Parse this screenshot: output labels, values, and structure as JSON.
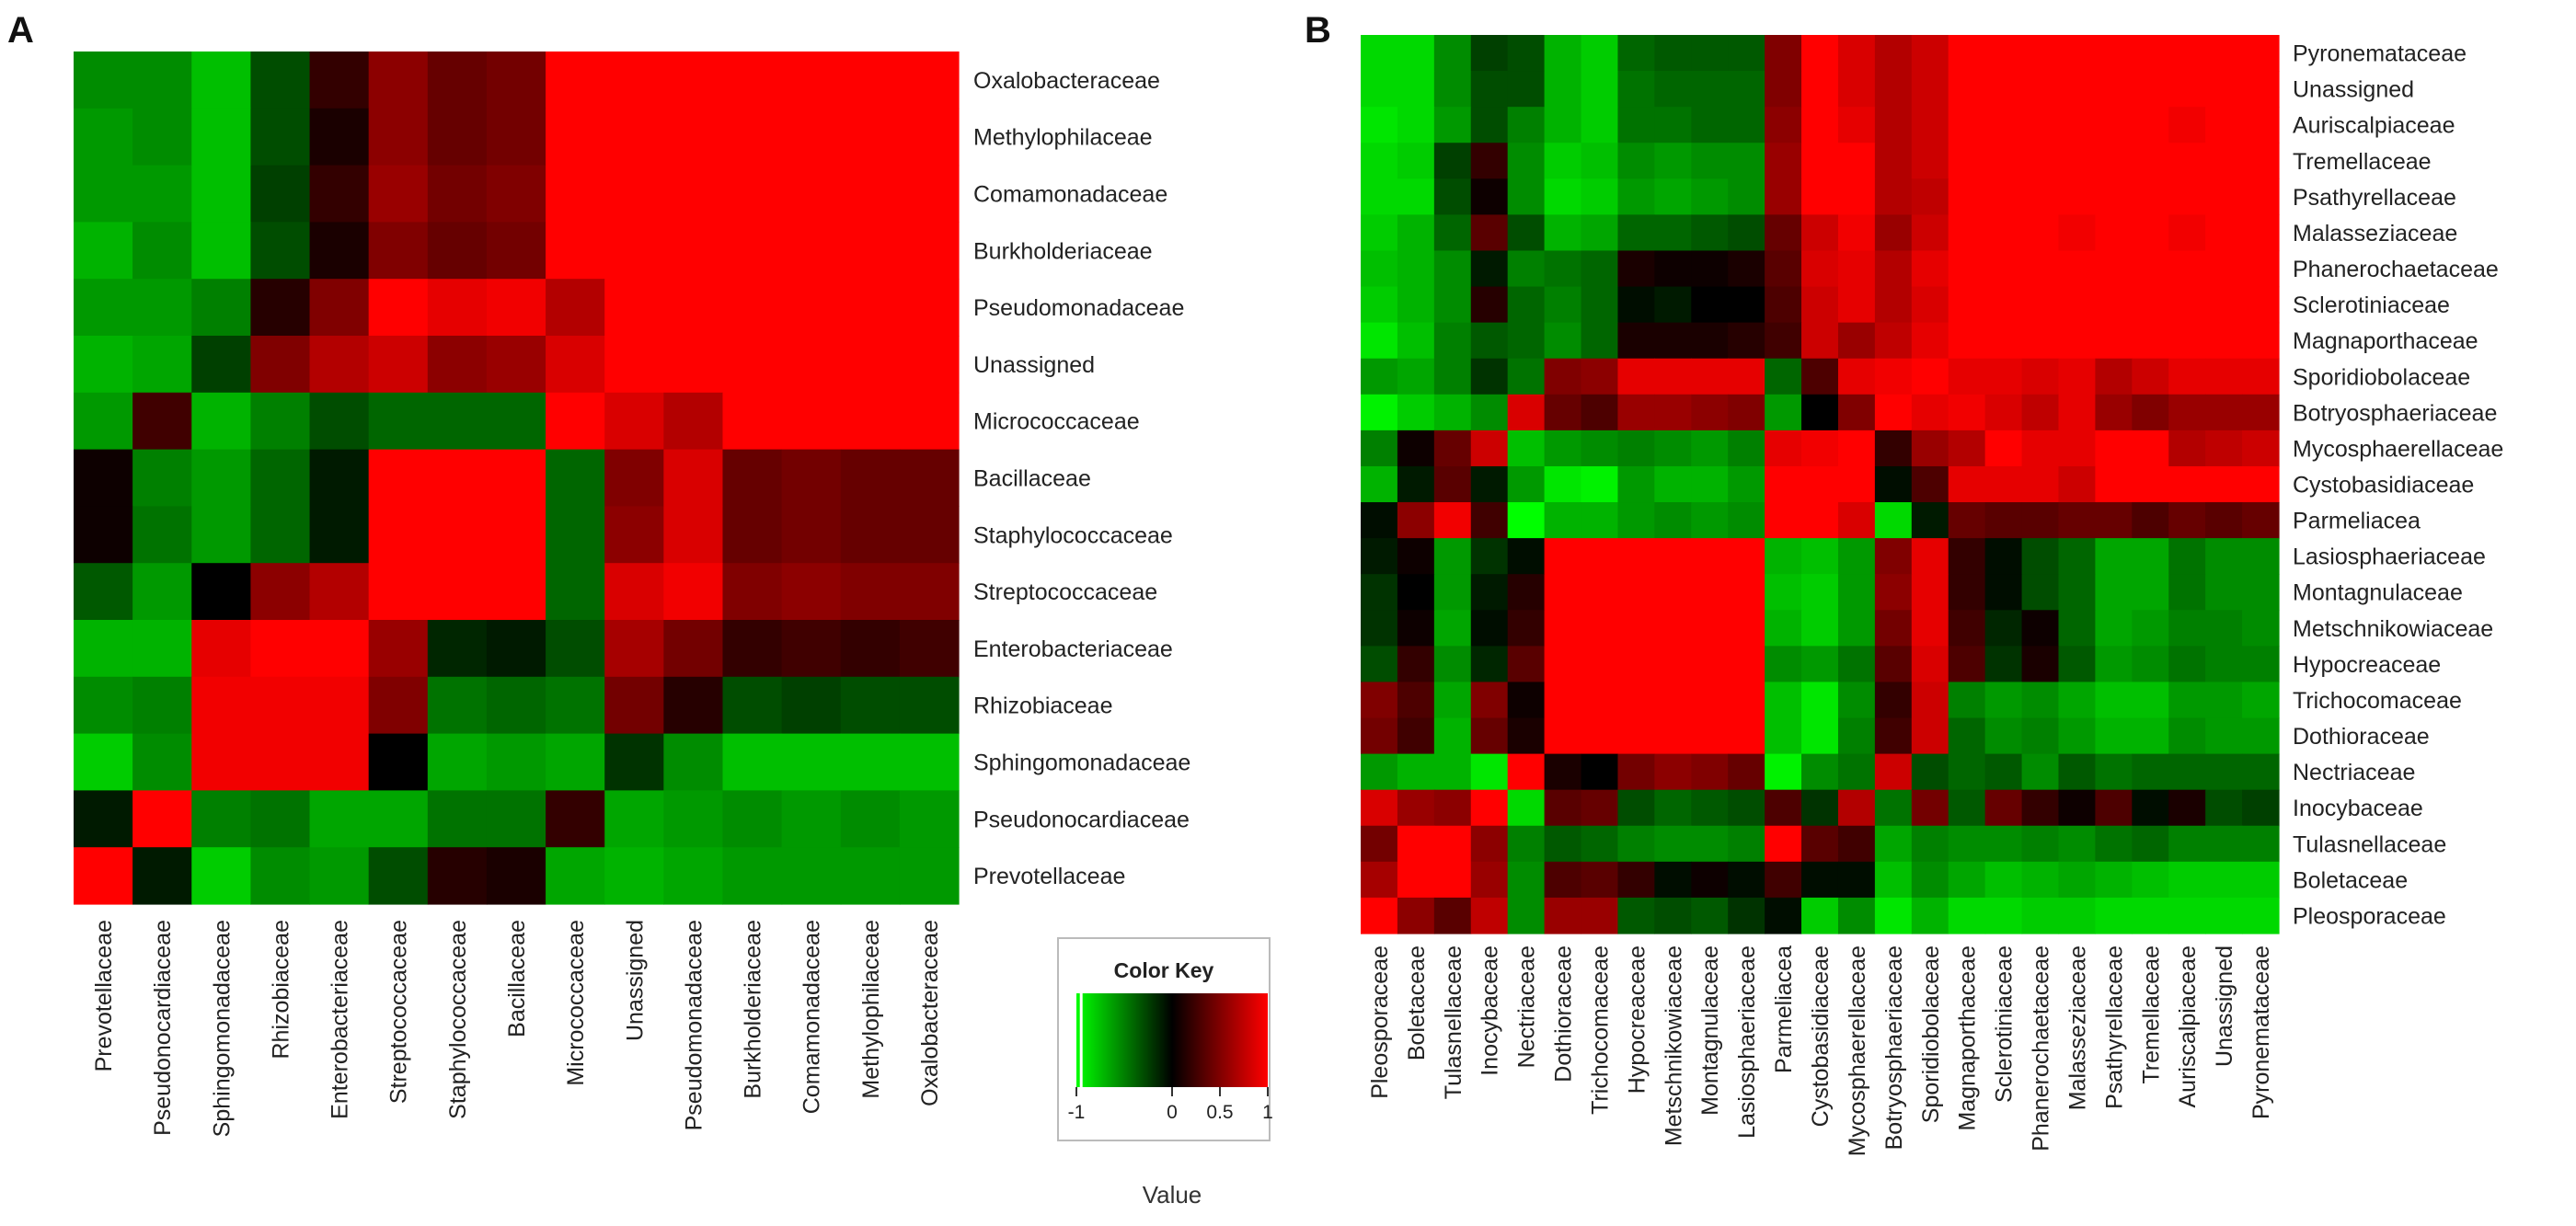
{
  "chart_data": [
    {
      "type": "heatmap",
      "panel_label": "A",
      "rows": [
        "Oxalobacteraceae",
        "Methylophilaceae",
        "Comamonadaceae",
        "Burkholderiaceae",
        "Pseudomonadaceae",
        "Unassigned",
        "Micrococcaceae",
        "Bacillaceae",
        "Staphylococcaceae",
        "Streptococcaceae",
        "Enterobacteriaceae",
        "Rhizobiaceae",
        "Sphingomonadaceae",
        "Pseudonocardiaceae",
        "Prevotellaceae"
      ],
      "columns": [
        "Prevotellaceae",
        "Pseudonocardiaceae",
        "Sphingomonadaceae",
        "Rhizobiaceae",
        "Enterobacteriaceae",
        "Streptococcaceae",
        "Staphylococcaceae",
        "Bacillaceae",
        "Micrococcaceae",
        "Unassigned",
        "Pseudomonadaceae",
        "Burkholderiaceae",
        "Comamonadaceae",
        "Methylophilaceae",
        "Oxalobacteraceae"
      ],
      "values": [
        [
          -0.55,
          -0.55,
          -0.75,
          -0.3,
          0.2,
          0.55,
          0.4,
          0.45,
          1.0,
          1.0,
          1.0,
          1.0,
          1.0,
          1.0,
          1.0
        ],
        [
          -0.6,
          -0.55,
          -0.75,
          -0.3,
          0.1,
          0.55,
          0.4,
          0.45,
          1.0,
          1.0,
          1.0,
          1.0,
          1.0,
          1.0,
          1.0
        ],
        [
          -0.6,
          -0.6,
          -0.75,
          -0.25,
          0.2,
          0.6,
          0.45,
          0.5,
          1.0,
          1.0,
          1.0,
          1.0,
          1.0,
          1.0,
          1.0
        ],
        [
          -0.7,
          -0.55,
          -0.75,
          -0.3,
          0.1,
          0.5,
          0.4,
          0.45,
          1.0,
          1.0,
          1.0,
          1.0,
          1.0,
          1.0,
          1.0
        ],
        [
          -0.6,
          -0.6,
          -0.5,
          0.15,
          0.5,
          1.0,
          0.9,
          0.95,
          0.7,
          1.0,
          1.0,
          1.0,
          1.0,
          1.0,
          1.0
        ],
        [
          -0.7,
          -0.65,
          -0.25,
          0.5,
          0.7,
          0.8,
          0.55,
          0.6,
          0.85,
          1.0,
          1.0,
          1.0,
          1.0,
          1.0,
          1.0
        ],
        [
          -0.6,
          0.25,
          -0.7,
          -0.5,
          -0.3,
          -0.4,
          -0.4,
          -0.4,
          1.0,
          0.85,
          0.7,
          1.0,
          1.0,
          1.0,
          1.0
        ],
        [
          0.05,
          -0.5,
          -0.6,
          -0.4,
          -0.1,
          1.0,
          1.0,
          1.0,
          -0.4,
          0.5,
          0.85,
          0.4,
          0.45,
          0.4,
          0.4
        ],
        [
          0.05,
          -0.45,
          -0.6,
          -0.4,
          -0.1,
          1.0,
          1.0,
          1.0,
          -0.4,
          0.55,
          0.85,
          0.4,
          0.45,
          0.4,
          0.4
        ],
        [
          -0.35,
          -0.6,
          0.0,
          0.55,
          0.7,
          1.0,
          1.0,
          1.0,
          -0.4,
          0.85,
          0.95,
          0.5,
          0.55,
          0.5,
          0.5
        ],
        [
          -0.7,
          -0.7,
          0.9,
          1.0,
          1.0,
          0.6,
          -0.15,
          -0.1,
          -0.3,
          0.65,
          0.45,
          0.2,
          0.25,
          0.2,
          0.25
        ],
        [
          -0.55,
          -0.5,
          0.95,
          0.95,
          0.95,
          0.5,
          -0.45,
          -0.4,
          -0.45,
          0.45,
          0.15,
          -0.3,
          -0.25,
          -0.3,
          -0.3
        ],
        [
          -0.8,
          -0.55,
          0.95,
          0.95,
          0.95,
          0.0,
          -0.65,
          -0.6,
          -0.65,
          -0.2,
          -0.55,
          -0.75,
          -0.75,
          -0.75,
          -0.75
        ],
        [
          -0.1,
          1.0,
          -0.5,
          -0.45,
          -0.65,
          -0.65,
          -0.45,
          -0.45,
          0.2,
          -0.65,
          -0.6,
          -0.55,
          -0.6,
          -0.55,
          -0.6
        ],
        [
          1.0,
          -0.1,
          -0.8,
          -0.55,
          -0.6,
          -0.3,
          0.15,
          0.1,
          -0.65,
          -0.7,
          -0.65,
          -0.6,
          -0.6,
          -0.6,
          -0.6
        ]
      ]
    },
    {
      "type": "heatmap",
      "panel_label": "B",
      "rows": [
        "Pyronemataceae",
        "Unassigned",
        "Auriscalpiaceae",
        "Tremellaceae",
        "Psathyrellaceae",
        "Malasseziaceae",
        "Phanerochaetaceae",
        "Sclerotiniaceae",
        "Magnaporthaceae",
        "Sporidiobolaceae",
        "Botryosphaeriaceae",
        "Mycosphaerellaceae",
        "Cystobasidiaceae",
        "Parmeliacea",
        "Lasiosphaeriaceae",
        "Montagnulaceae",
        "Metschnikowiaceae",
        "Hypocreaceae",
        "Trichocomaceae",
        "Dothioraceae",
        "Nectriaceae",
        "Inocybaceae",
        "Tulasnellaceae",
        "Boletaceae",
        "Pleosporaceae"
      ],
      "columns": [
        "Pleosporaceae",
        "Boletaceae",
        "Tulasnellaceae",
        "Inocybaceae",
        "Nectriaceae",
        "Dothioraceae",
        "Trichocomaceae",
        "Hypocreaceae",
        "Metschnikowiaceae",
        "Montagnulaceae",
        "Lasiosphaeriaceae",
        "Parmeliacea",
        "Cystobasidiaceae",
        "Mycosphaerellaceae",
        "Botryosphaeriaceae",
        "Sporidiobolaceae",
        "Magnaporthaceae",
        "Sclerotiniaceae",
        "Phanerochaetaceae",
        "Malasseziaceae",
        "Psathyrellaceae",
        "Tremellaceae",
        "Auriscalpiaceae",
        "Unassigned",
        "Pyronemataceae"
      ],
      "values": [
        [
          -0.85,
          -0.85,
          -0.55,
          -0.25,
          -0.3,
          -0.7,
          -0.8,
          -0.4,
          -0.35,
          -0.35,
          -0.35,
          0.5,
          1.0,
          0.85,
          0.7,
          0.8,
          1.0,
          1.0,
          1.0,
          1.0,
          1.0,
          1.0,
          1.0,
          1.0,
          1.0
        ],
        [
          -0.85,
          -0.85,
          -0.55,
          -0.3,
          -0.3,
          -0.7,
          -0.8,
          -0.45,
          -0.4,
          -0.4,
          -0.4,
          0.5,
          1.0,
          0.85,
          0.7,
          0.8,
          1.0,
          1.0,
          1.0,
          1.0,
          1.0,
          1.0,
          1.0,
          1.0,
          1.0
        ],
        [
          -0.9,
          -0.85,
          -0.6,
          -0.3,
          -0.5,
          -0.7,
          -0.8,
          -0.45,
          -0.45,
          -0.4,
          -0.4,
          0.55,
          1.0,
          0.9,
          0.7,
          0.8,
          1.0,
          1.0,
          1.0,
          1.0,
          1.0,
          1.0,
          0.95,
          1.0,
          1.0
        ],
        [
          -0.85,
          -0.8,
          -0.25,
          0.2,
          -0.55,
          -0.8,
          -0.75,
          -0.55,
          -0.6,
          -0.55,
          -0.55,
          0.6,
          1.0,
          1.0,
          0.7,
          0.8,
          1.0,
          1.0,
          1.0,
          1.0,
          1.0,
          1.0,
          1.0,
          1.0,
          1.0
        ],
        [
          -0.85,
          -0.85,
          -0.3,
          0.05,
          -0.55,
          -0.85,
          -0.8,
          -0.6,
          -0.65,
          -0.6,
          -0.55,
          0.6,
          1.0,
          1.0,
          0.7,
          0.75,
          1.0,
          1.0,
          1.0,
          1.0,
          1.0,
          1.0,
          1.0,
          1.0,
          1.0
        ],
        [
          -0.8,
          -0.7,
          -0.4,
          0.35,
          -0.3,
          -0.7,
          -0.65,
          -0.4,
          -0.4,
          -0.35,
          -0.3,
          0.4,
          0.8,
          0.95,
          0.6,
          0.8,
          1.0,
          1.0,
          1.0,
          0.95,
          1.0,
          1.0,
          0.95,
          1.0,
          1.0
        ],
        [
          -0.75,
          -0.7,
          -0.55,
          -0.1,
          -0.5,
          -0.45,
          -0.4,
          0.1,
          0.05,
          0.05,
          0.1,
          0.35,
          0.85,
          0.9,
          0.7,
          0.9,
          1.0,
          1.0,
          1.0,
          1.0,
          1.0,
          1.0,
          1.0,
          1.0,
          1.0
        ],
        [
          -0.8,
          -0.7,
          -0.55,
          0.15,
          -0.4,
          -0.5,
          -0.4,
          -0.05,
          -0.1,
          0.0,
          0.0,
          0.3,
          0.8,
          0.9,
          0.7,
          0.85,
          1.0,
          1.0,
          1.0,
          1.0,
          1.0,
          1.0,
          1.0,
          1.0,
          1.0
        ],
        [
          -0.9,
          -0.75,
          -0.5,
          -0.35,
          -0.4,
          -0.55,
          -0.4,
          0.1,
          0.1,
          0.1,
          0.15,
          0.25,
          0.8,
          0.6,
          0.75,
          0.9,
          1.0,
          1.0,
          1.0,
          1.0,
          1.0,
          1.0,
          1.0,
          1.0,
          1.0
        ],
        [
          -0.6,
          -0.65,
          -0.5,
          -0.2,
          -0.45,
          0.5,
          0.55,
          0.9,
          0.9,
          0.9,
          0.9,
          -0.4,
          0.3,
          0.9,
          0.95,
          1.0,
          0.9,
          0.9,
          0.85,
          0.9,
          0.7,
          0.8,
          0.9,
          0.9,
          0.9
        ],
        [
          -0.95,
          -0.8,
          -0.7,
          -0.55,
          0.85,
          0.4,
          0.3,
          0.6,
          0.6,
          0.55,
          0.5,
          -0.6,
          0.0,
          0.5,
          1.0,
          0.9,
          0.95,
          0.85,
          0.75,
          0.9,
          0.6,
          0.5,
          0.6,
          0.6,
          0.6
        ],
        [
          -0.5,
          0.05,
          0.4,
          0.8,
          -0.75,
          -0.6,
          -0.55,
          -0.5,
          -0.55,
          -0.6,
          -0.5,
          0.9,
          0.95,
          1.0,
          0.2,
          0.6,
          0.7,
          1.0,
          0.9,
          0.9,
          1.0,
          1.0,
          0.7,
          0.75,
          0.8
        ],
        [
          -0.7,
          -0.1,
          0.35,
          -0.1,
          -0.6,
          -0.9,
          -0.95,
          -0.6,
          -0.7,
          -0.7,
          -0.6,
          1.0,
          1.0,
          1.0,
          -0.05,
          0.3,
          0.9,
          0.9,
          0.9,
          0.8,
          1.0,
          1.0,
          1.0,
          1.0,
          1.0
        ],
        [
          -0.05,
          0.55,
          0.95,
          0.25,
          -1.0,
          -0.7,
          -0.7,
          -0.6,
          -0.55,
          -0.6,
          -0.55,
          1.0,
          1.0,
          0.85,
          -0.85,
          -0.1,
          0.4,
          0.35,
          0.35,
          0.4,
          0.4,
          0.3,
          0.4,
          0.35,
          0.4
        ],
        [
          -0.1,
          0.05,
          -0.6,
          -0.2,
          -0.05,
          1.0,
          1.0,
          1.0,
          1.0,
          1.0,
          1.0,
          -0.7,
          -0.75,
          -0.6,
          0.5,
          0.9,
          0.2,
          -0.05,
          -0.3,
          -0.4,
          -0.65,
          -0.65,
          -0.45,
          -0.55,
          -0.55
        ],
        [
          -0.2,
          0.0,
          -0.6,
          -0.1,
          0.15,
          1.0,
          1.0,
          1.0,
          1.0,
          1.0,
          1.0,
          -0.75,
          -0.8,
          -0.6,
          0.55,
          0.9,
          0.2,
          -0.05,
          -0.3,
          -0.4,
          -0.65,
          -0.65,
          -0.45,
          -0.55,
          -0.55
        ],
        [
          -0.2,
          0.05,
          -0.65,
          -0.05,
          0.2,
          1.0,
          1.0,
          1.0,
          1.0,
          1.0,
          1.0,
          -0.7,
          -0.8,
          -0.6,
          0.45,
          0.9,
          0.25,
          -0.15,
          0.05,
          -0.4,
          -0.65,
          -0.6,
          -0.5,
          -0.5,
          -0.55
        ],
        [
          -0.3,
          0.2,
          -0.55,
          -0.15,
          0.35,
          1.0,
          1.0,
          1.0,
          1.0,
          1.0,
          1.0,
          -0.55,
          -0.6,
          -0.45,
          0.35,
          0.85,
          0.3,
          -0.2,
          0.1,
          -0.35,
          -0.6,
          -0.55,
          -0.45,
          -0.5,
          -0.5
        ],
        [
          0.5,
          0.3,
          -0.65,
          0.5,
          0.05,
          1.0,
          1.0,
          1.0,
          1.0,
          1.0,
          1.0,
          -0.75,
          -0.9,
          -0.55,
          0.2,
          0.8,
          -0.5,
          -0.6,
          -0.55,
          -0.65,
          -0.75,
          -0.75,
          -0.6,
          -0.6,
          -0.65
        ],
        [
          0.45,
          0.25,
          -0.7,
          0.4,
          0.1,
          1.0,
          1.0,
          1.0,
          1.0,
          1.0,
          1.0,
          -0.75,
          -0.9,
          -0.5,
          0.25,
          0.8,
          -0.4,
          -0.55,
          -0.5,
          -0.6,
          -0.7,
          -0.7,
          -0.55,
          -0.6,
          -0.6
        ],
        [
          -0.6,
          -0.7,
          -0.7,
          -0.9,
          1.0,
          0.1,
          0.0,
          0.45,
          0.55,
          0.5,
          0.4,
          -0.95,
          -0.55,
          -0.45,
          0.8,
          -0.3,
          -0.4,
          -0.35,
          -0.55,
          -0.35,
          -0.45,
          -0.4,
          -0.4,
          -0.4,
          -0.4
        ],
        [
          0.85,
          0.6,
          0.55,
          1.0,
          -0.85,
          0.35,
          0.4,
          -0.3,
          -0.4,
          -0.35,
          -0.3,
          0.3,
          -0.2,
          0.7,
          -0.45,
          0.45,
          -0.35,
          0.4,
          0.2,
          0.05,
          0.3,
          -0.05,
          0.1,
          -0.3,
          -0.25
        ],
        [
          0.45,
          1.0,
          1.0,
          0.55,
          -0.5,
          -0.35,
          -0.4,
          -0.5,
          -0.55,
          -0.55,
          -0.5,
          1.0,
          0.35,
          0.25,
          -0.65,
          -0.5,
          -0.55,
          -0.55,
          -0.5,
          -0.55,
          -0.45,
          -0.4,
          -0.5,
          -0.5,
          -0.5
        ],
        [
          0.65,
          1.0,
          1.0,
          0.6,
          -0.55,
          0.3,
          0.35,
          0.2,
          -0.05,
          0.05,
          -0.05,
          0.25,
          -0.05,
          -0.05,
          -0.75,
          -0.55,
          -0.65,
          -0.75,
          -0.7,
          -0.65,
          -0.7,
          -0.75,
          -0.8,
          -0.8,
          -0.8
        ],
        [
          1.0,
          0.55,
          0.35,
          0.75,
          -0.55,
          0.6,
          0.6,
          -0.35,
          -0.3,
          -0.35,
          -0.2,
          -0.05,
          -0.8,
          -0.55,
          -0.9,
          -0.7,
          -0.85,
          -0.85,
          -0.8,
          -0.8,
          -0.85,
          -0.85,
          -0.85,
          -0.85,
          -0.85
        ]
      ]
    }
  ],
  "color_key": {
    "title": "Color Key",
    "tick_labels": [
      "-1",
      "0",
      "0.5",
      "1"
    ],
    "tick_values": [
      -1,
      0,
      0.5,
      1
    ],
    "xlabel": "Value",
    "low_color": "#00ff00",
    "mid_color": "#000000",
    "high_color": "#ff0000",
    "marker_value": -0.95
  }
}
